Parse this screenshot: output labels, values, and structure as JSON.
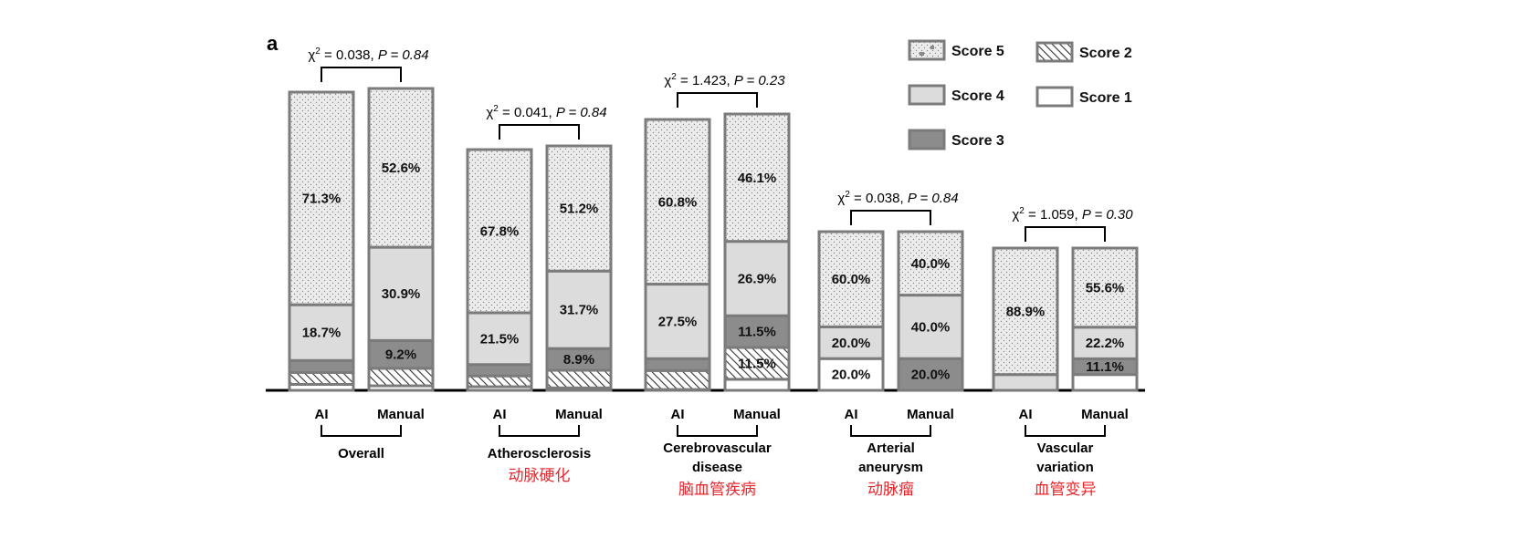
{
  "panel_letter": "a",
  "chart_data": {
    "type": "bar",
    "stacked": true,
    "ylim": [
      0,
      100
    ],
    "grid": false,
    "legend_position": "top-right",
    "legend": [
      {
        "name": "Score 5",
        "key": "s5",
        "pattern": "dots",
        "color": "#ececec"
      },
      {
        "name": "Score 4",
        "key": "s4",
        "pattern": "solid",
        "color": "#dcdcdc"
      },
      {
        "name": "Score 3",
        "key": "s3",
        "pattern": "solid",
        "color": "#8c8c8c"
      },
      {
        "name": "Score 2",
        "key": "s2",
        "pattern": "hatch",
        "color": "#ffffff"
      },
      {
        "name": "Score 1",
        "key": "s1",
        "pattern": "solid",
        "color": "#ffffff"
      }
    ],
    "groups": [
      {
        "name_lines": [
          "Overall"
        ],
        "name_cn": "",
        "stat": {
          "chi2": "0.038",
          "p": "0.84"
        },
        "bars": [
          {
            "label": "AI",
            "segments": [
              {
                "score": "s1",
                "value": 2.0,
                "label": ""
              },
              {
                "score": "s2",
                "value": 4.0,
                "label": ""
              },
              {
                "score": "s3",
                "value": 4.0,
                "label": ""
              },
              {
                "score": "s4",
                "value": 18.7,
                "label": "18.7%"
              },
              {
                "score": "s5",
                "value": 71.3,
                "label": "71.3%"
              }
            ]
          },
          {
            "label": "Manual",
            "segments": [
              {
                "score": "s1",
                "value": 1.5,
                "label": ""
              },
              {
                "score": "s2",
                "value": 5.8,
                "label": ""
              },
              {
                "score": "s3",
                "value": 9.2,
                "label": "9.2%"
              },
              {
                "score": "s4",
                "value": 30.9,
                "label": "30.9%"
              },
              {
                "score": "s5",
                "value": 52.6,
                "label": "52.6%"
              }
            ]
          }
        ]
      },
      {
        "name_lines": [
          "Atherosclerosis"
        ],
        "name_cn": "动脉硬化",
        "stat": {
          "chi2": "0.041",
          "p": "0.84"
        },
        "bars": [
          {
            "label": "AI",
            "segments": [
              {
                "score": "s1",
                "value": 1.5,
                "label": ""
              },
              {
                "score": "s2",
                "value": 4.5,
                "label": ""
              },
              {
                "score": "s3",
                "value": 4.7,
                "label": ""
              },
              {
                "score": "s4",
                "value": 21.5,
                "label": "21.5%"
              },
              {
                "score": "s5",
                "value": 67.8,
                "label": "67.8%"
              }
            ]
          },
          {
            "label": "Manual",
            "segments": [
              {
                "score": "s1",
                "value": 1.0,
                "label": ""
              },
              {
                "score": "s2",
                "value": 7.2,
                "label": ""
              },
              {
                "score": "s3",
                "value": 8.9,
                "label": "8.9%"
              },
              {
                "score": "s4",
                "value": 31.7,
                "label": "31.7%"
              },
              {
                "score": "s5",
                "value": 51.2,
                "label": "51.2%"
              }
            ]
          }
        ]
      },
      {
        "name_lines": [
          "Cerebrovascular",
          "disease"
        ],
        "name_cn": "脑血管疾病",
        "stat": {
          "chi2": "1.423",
          "p": "0.23"
        },
        "bars": [
          {
            "label": "AI",
            "segments": [
              {
                "score": "s1",
                "value": 0.3,
                "label": ""
              },
              {
                "score": "s2",
                "value": 7.0,
                "label": ""
              },
              {
                "score": "s3",
                "value": 4.4,
                "label": ""
              },
              {
                "score": "s4",
                "value": 27.5,
                "label": "27.5%"
              },
              {
                "score": "s5",
                "value": 60.8,
                "label": "60.8%"
              }
            ]
          },
          {
            "label": "Manual",
            "segments": [
              {
                "score": "s1",
                "value": 4.0,
                "label": ""
              },
              {
                "score": "s2",
                "value": 11.5,
                "label": "11.5%"
              },
              {
                "score": "s3",
                "value": 11.5,
                "label": "11.5%"
              },
              {
                "score": "s4",
                "value": 26.9,
                "label": "26.9%"
              },
              {
                "score": "s5",
                "value": 46.1,
                "label": "46.1%"
              }
            ]
          }
        ]
      },
      {
        "name_lines": [
          "Arterial",
          "aneurysm"
        ],
        "name_cn": "动脉瘤",
        "stat": {
          "chi2": "0.038",
          "p": "0.84"
        },
        "bars": [
          {
            "label": "AI",
            "segments": [
              {
                "score": "s1",
                "value": 20.0,
                "label": "20.0%"
              },
              {
                "score": "s4",
                "value": 20.0,
                "label": "20.0%"
              },
              {
                "score": "s5",
                "value": 60.0,
                "label": "60.0%"
              }
            ]
          },
          {
            "label": "Manual",
            "segments": [
              {
                "score": "s3",
                "value": 20.0,
                "label": "20.0%"
              },
              {
                "score": "s4",
                "value": 40.0,
                "label": "40.0%"
              },
              {
                "score": "s5",
                "value": 40.0,
                "label": "40.0%"
              }
            ]
          }
        ]
      },
      {
        "name_lines": [
          "Vascular",
          "variation"
        ],
        "name_cn": "血管变异",
        "stat": {
          "chi2": "1.059",
          "p": "0.30"
        },
        "bars": [
          {
            "label": "AI",
            "segments": [
              {
                "score": "s4",
                "value": 11.1,
                "label": ""
              },
              {
                "score": "s5",
                "value": 88.9,
                "label": "88.9%"
              }
            ]
          },
          {
            "label": "Manual",
            "segments": [
              {
                "score": "s1",
                "value": 11.1,
                "label": ""
              },
              {
                "score": "s3",
                "value": 11.1,
                "label": "11.1%"
              },
              {
                "score": "s4",
                "value": 22.2,
                "label": "22.2%"
              },
              {
                "score": "s5",
                "value": 55.6,
                "label": "55.6%"
              }
            ]
          }
        ]
      }
    ]
  }
}
